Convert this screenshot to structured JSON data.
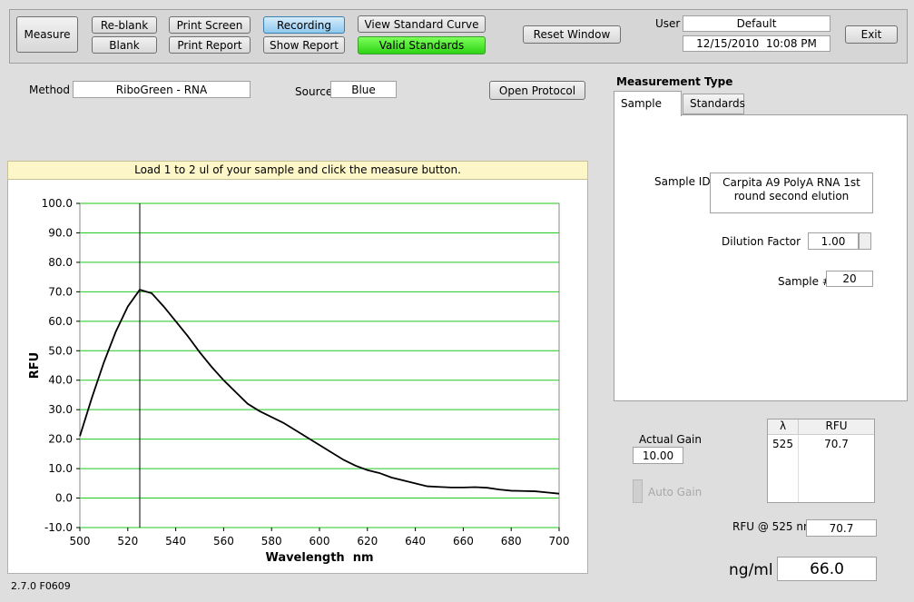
{
  "toolbar": {
    "measure": "Measure",
    "reblank": "Re-blank",
    "blank": "Blank",
    "print_screen": "Print Screen",
    "print_report": "Print Report",
    "recording": "Recording",
    "show_report": "Show Report",
    "view_standard_curve": "View Standard Curve",
    "valid_standards": "Valid Standards",
    "reset_window": "Reset Window",
    "user_label": "User",
    "user": "Default",
    "datetime": "12/15/2010  10:08 PM",
    "exit": "Exit"
  },
  "method": {
    "label": "Method",
    "value": "RiboGreen - RNA"
  },
  "source": {
    "label": "Source",
    "value": "Blue"
  },
  "open_protocol": "Open Protocol",
  "measurement_type": {
    "title": "Measurement Type",
    "tabs": [
      "Sample",
      "Standards"
    ],
    "sample_id_label": "Sample ID",
    "sample_id": "Carpita A9 PolyA RNA 1st round second elution",
    "dilution_label": "Dilution Factor",
    "dilution": "1.00",
    "sample_no_label": "Sample #",
    "sample_no": "20"
  },
  "gain": {
    "label": "Actual Gain",
    "value": "10.00",
    "auto": "Auto Gain"
  },
  "results_table": {
    "headers": [
      "λ",
      "RFU"
    ],
    "rows": [
      [
        "525",
        "70.7"
      ]
    ]
  },
  "rfu_at": {
    "label": "RFU @ 525 nm",
    "value": "70.7"
  },
  "concentration": {
    "label": "ng/ml",
    "value": "66.0"
  },
  "version": "2.7.0 F0609",
  "chart_panel": {
    "banner": "Load 1 to 2 ul of your sample and click the measure button."
  },
  "chart_data": {
    "type": "line",
    "xlabel": "Wavelength  nm",
    "ylabel": "RFU",
    "x": [
      500,
      505,
      510,
      515,
      520,
      525,
      530,
      535,
      540,
      545,
      550,
      555,
      560,
      565,
      570,
      575,
      580,
      585,
      590,
      595,
      600,
      605,
      610,
      615,
      620,
      625,
      630,
      635,
      640,
      645,
      650,
      655,
      660,
      665,
      670,
      675,
      680,
      685,
      690,
      695,
      700
    ],
    "series": [
      {
        "color": "#000000",
        "values": [
          21,
          34,
          46,
          56.5,
          65,
          70.7,
          69.5,
          65,
          60,
          55,
          49.5,
          44.5,
          40,
          36,
          32,
          29.5,
          27.5,
          25.5,
          23,
          20.5,
          18,
          15.5,
          13,
          11,
          9.5,
          8.5,
          7,
          6,
          5,
          4,
          3.8,
          3.6,
          3.6,
          3.7,
          3.5,
          2.9,
          2.5,
          2.4,
          2.3,
          1.9,
          1.5
        ]
      }
    ],
    "cursor_x": 525,
    "xlim": [
      500,
      700
    ],
    "xticks": [
      500,
      520,
      540,
      560,
      580,
      600,
      620,
      640,
      660,
      680,
      700
    ],
    "ylim": [
      -10,
      100
    ],
    "yticks": [
      {
        "value": -10,
        "label": "-10.0"
      },
      {
        "value": 0,
        "label": "0.0"
      },
      {
        "value": 10,
        "label": "10.0"
      },
      {
        "value": 20,
        "label": "20.0"
      },
      {
        "value": 30,
        "label": "30.0"
      },
      {
        "value": 40,
        "label": "40.0"
      },
      {
        "value": 50,
        "label": "50.0"
      },
      {
        "value": 60,
        "label": "60.0"
      },
      {
        "value": 70,
        "label": "70.0"
      },
      {
        "value": 80,
        "label": "80.0"
      },
      {
        "value": 90,
        "label": "90.0"
      },
      {
        "value": 100,
        "label": "100.0"
      }
    ],
    "grid": true,
    "grid_color": "#22c822"
  }
}
